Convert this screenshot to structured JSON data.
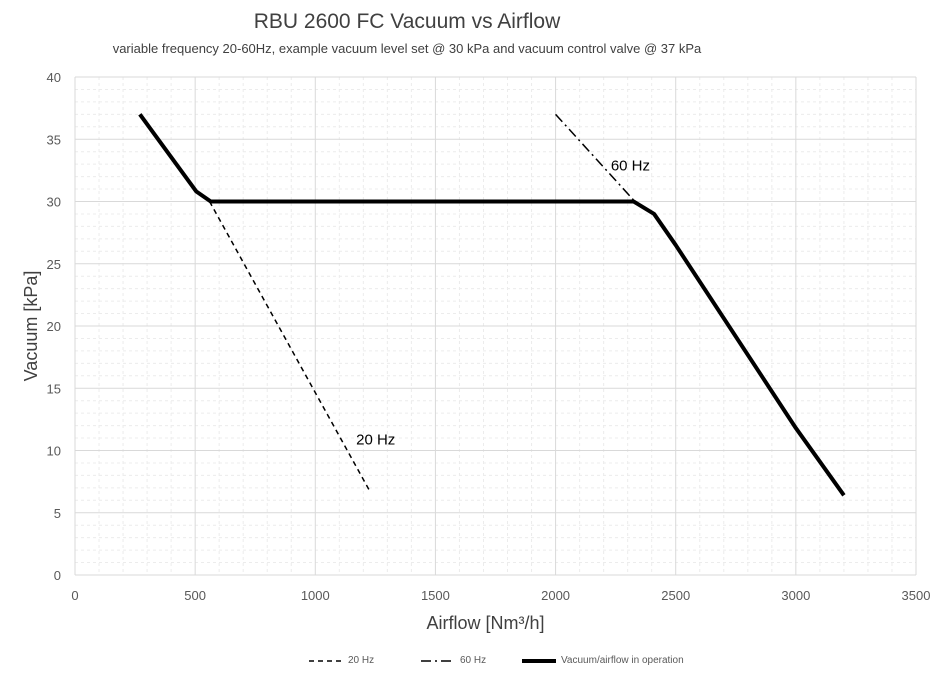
{
  "chart_data": {
    "type": "line",
    "title": "RBU 2600 FC Vacuum vs Airflow",
    "subtitle": "variable frequency 20-60Hz, example vacuum level set @ 30 kPa and vacuum control valve @ 37 kPa",
    "xlabel": "Airflow [Nm³/h]",
    "ylabel": "Vacuum [kPa]",
    "xlim": [
      0,
      3500
    ],
    "ylim": [
      0,
      40
    ],
    "xticks": [
      "0",
      "500",
      "1000",
      "1500",
      "2000",
      "2500",
      "3000",
      "3500"
    ],
    "yticks": [
      "0",
      "5",
      "10",
      "15",
      "20",
      "25",
      "30",
      "35",
      "40"
    ],
    "grid": true,
    "legend_position": "bottom",
    "series": [
      {
        "name": "20 Hz",
        "style": "dashed",
        "color": "#000000",
        "x": [
          560,
          1225
        ],
        "y": [
          30,
          6.8
        ]
      },
      {
        "name": "60 Hz",
        "style": "dash-dot",
        "color": "#000000",
        "x": [
          2000,
          2330
        ],
        "y": [
          37,
          30
        ]
      },
      {
        "name": "Vacuum/airflow in operation",
        "style": "solid-thick",
        "color": "#000000",
        "x": [
          270,
          505,
          565,
          2325,
          2410,
          2500,
          3000,
          3200
        ],
        "y": [
          37,
          30.8,
          30,
          30,
          29,
          26.5,
          11.8,
          6.4
        ]
      }
    ],
    "annotations": [
      {
        "text": "60 Hz",
        "x": 2230,
        "y": 32.5
      },
      {
        "text": "20 Hz",
        "x": 1170,
        "y": 10.5
      }
    ]
  }
}
